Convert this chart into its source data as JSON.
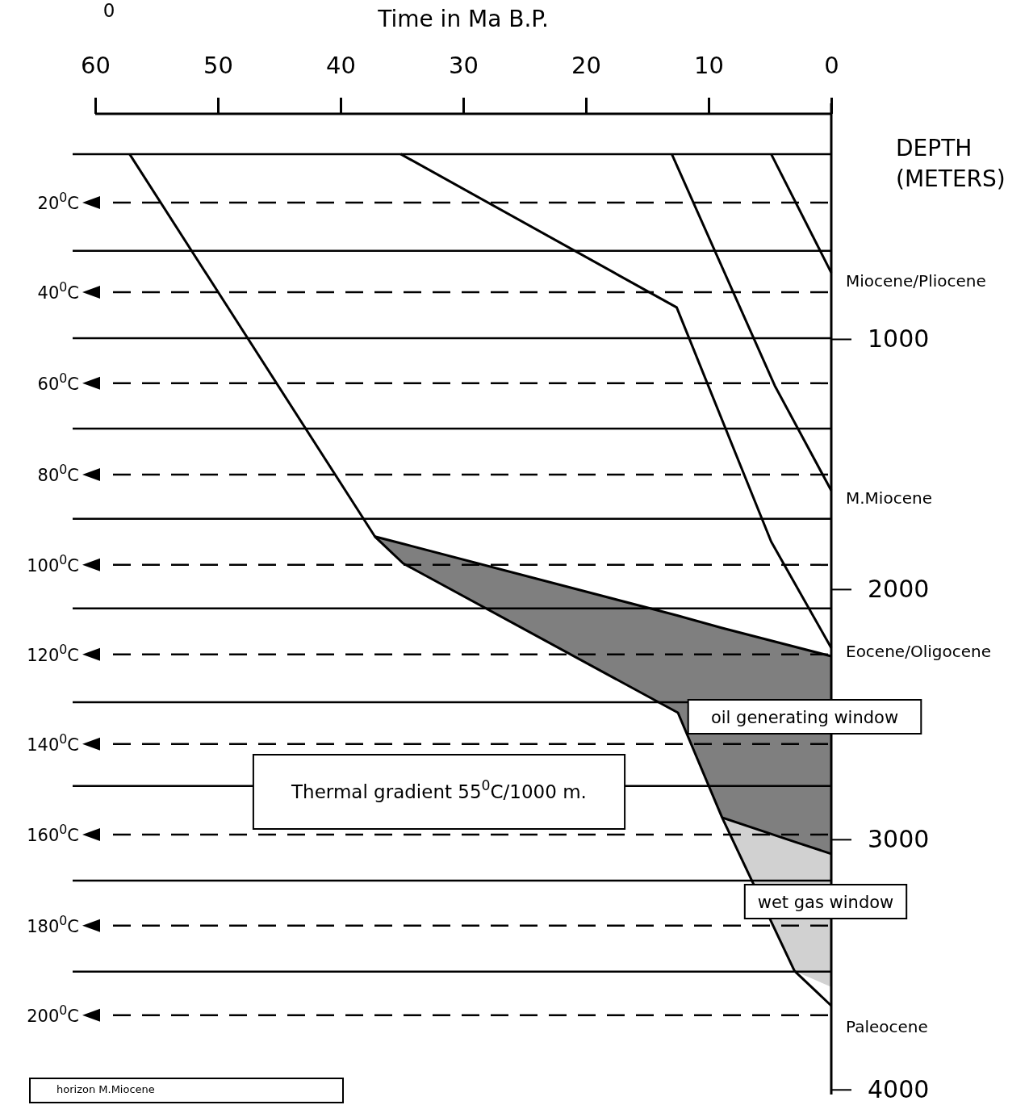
{
  "chart_data": {
    "type": "line",
    "xlabel": "Time in Ma B.P.",
    "ylabel": "DEPTH (METERS)",
    "xlim": [
      60,
      0
    ],
    "xticks": [
      60,
      50,
      40,
      30,
      20,
      10,
      0
    ],
    "ylim": [
      4020,
      100
    ],
    "yticks": [
      1000,
      2000,
      3000,
      4000
    ],
    "line_style": "solid",
    "marker": "none",
    "grid": false,
    "series": [
      {
        "color": "#000000",
        "x": [
          4.9,
          0
        ],
        "values": [
          261,
          735
        ]
      },
      {
        "color": "#000000",
        "x": [
          13.0,
          4.6,
          0
        ],
        "values": [
          261,
          1187,
          1606
        ]
      },
      {
        "color": "#000000",
        "x": [
          35.1,
          12.6,
          4.9,
          0
        ],
        "values": [
          261,
          874,
          1810,
          2235
        ]
      },
      {
        "color": "#000000",
        "x": [
          57.2,
          37.2,
          34.9,
          12.5,
          8.9,
          3.0,
          0
        ],
        "values": [
          261,
          1790,
          1897,
          2494,
          2913,
          3526,
          3665
        ]
      },
      {
        "color": "#000000",
        "x": [
          37.2,
          34.9,
          12.5,
          8.9,
          0
        ],
        "values": [
          1790,
          1819,
          2106,
          2155,
          2268
        ],
        "lower": [
          1790,
          1819,
          2106,
          2155,
          2268
        ],
        "upper": [
          1790,
          1897,
          2494,
          2913,
          3058
        ]
      },
      {
        "color": "#000000",
        "x": [
          8.9,
          3.0,
          0
        ],
        "values": [
          2913,
          3010,
          3058
        ],
        "lower": [
          2913,
          3010,
          3058
        ],
        "upper": [
          2913,
          3526,
          3590
        ]
      }
    ],
    "ref_lines": [
      {
        "axis": "y",
        "value": 261,
        "line_style": "solid"
      },
      {
        "axis": "y",
        "value": 648,
        "line_style": "solid"
      },
      {
        "axis": "y",
        "value": 997,
        "line_style": "solid"
      },
      {
        "axis": "y",
        "value": 1358,
        "line_style": "solid"
      },
      {
        "axis": "y",
        "value": 1719,
        "line_style": "solid"
      },
      {
        "axis": "y",
        "value": 2077,
        "line_style": "solid"
      },
      {
        "axis": "y",
        "value": 2452,
        "line_style": "solid"
      },
      {
        "axis": "y",
        "value": 2787,
        "line_style": "solid"
      },
      {
        "axis": "y",
        "value": 3165,
        "line_style": "solid"
      },
      {
        "axis": "y",
        "value": 3529,
        "line_style": "solid"
      },
      {
        "axis": "y",
        "value": 455,
        "label": "20$^{0}$C",
        "line_style": "dashed"
      },
      {
        "axis": "y",
        "value": 813,
        "label": "40$^{0}$C",
        "line_style": "dashed"
      },
      {
        "axis": "y",
        "value": 1177,
        "label": "60$^{0}$C",
        "line_style": "dashed"
      },
      {
        "axis": "y",
        "value": 1542,
        "label": "80$^{0}$C",
        "line_style": "dashed"
      },
      {
        "axis": "y",
        "value": 1903,
        "label": "100$^{0}$C",
        "line_style": "dashed"
      },
      {
        "axis": "y",
        "value": 2261,
        "label": "120$^{0}$C",
        "line_style": "dashed"
      },
      {
        "axis": "y",
        "value": 2619,
        "label": "140$^{0}$C",
        "line_style": "dashed"
      },
      {
        "axis": "y",
        "value": 2981,
        "label": "160$^{0}$C",
        "line_style": "dashed"
      },
      {
        "axis": "y",
        "value": 3345,
        "label": "180$^{0}$C",
        "line_style": "dashed"
      },
      {
        "axis": "y",
        "value": 3703,
        "label": "200$^{0}$C",
        "line_style": "dashed"
      }
    ],
    "annotations": [
      "Miocene/Pliocene",
      "M.Miocene",
      "Eocene/Oligocene",
      "Paleocene",
      "oil generating window",
      "wet gas window",
      "Thermal gradient 55$^{0}$C/1000 m.",
      "horizon M.Miocene",
      "0"
    ]
  }
}
